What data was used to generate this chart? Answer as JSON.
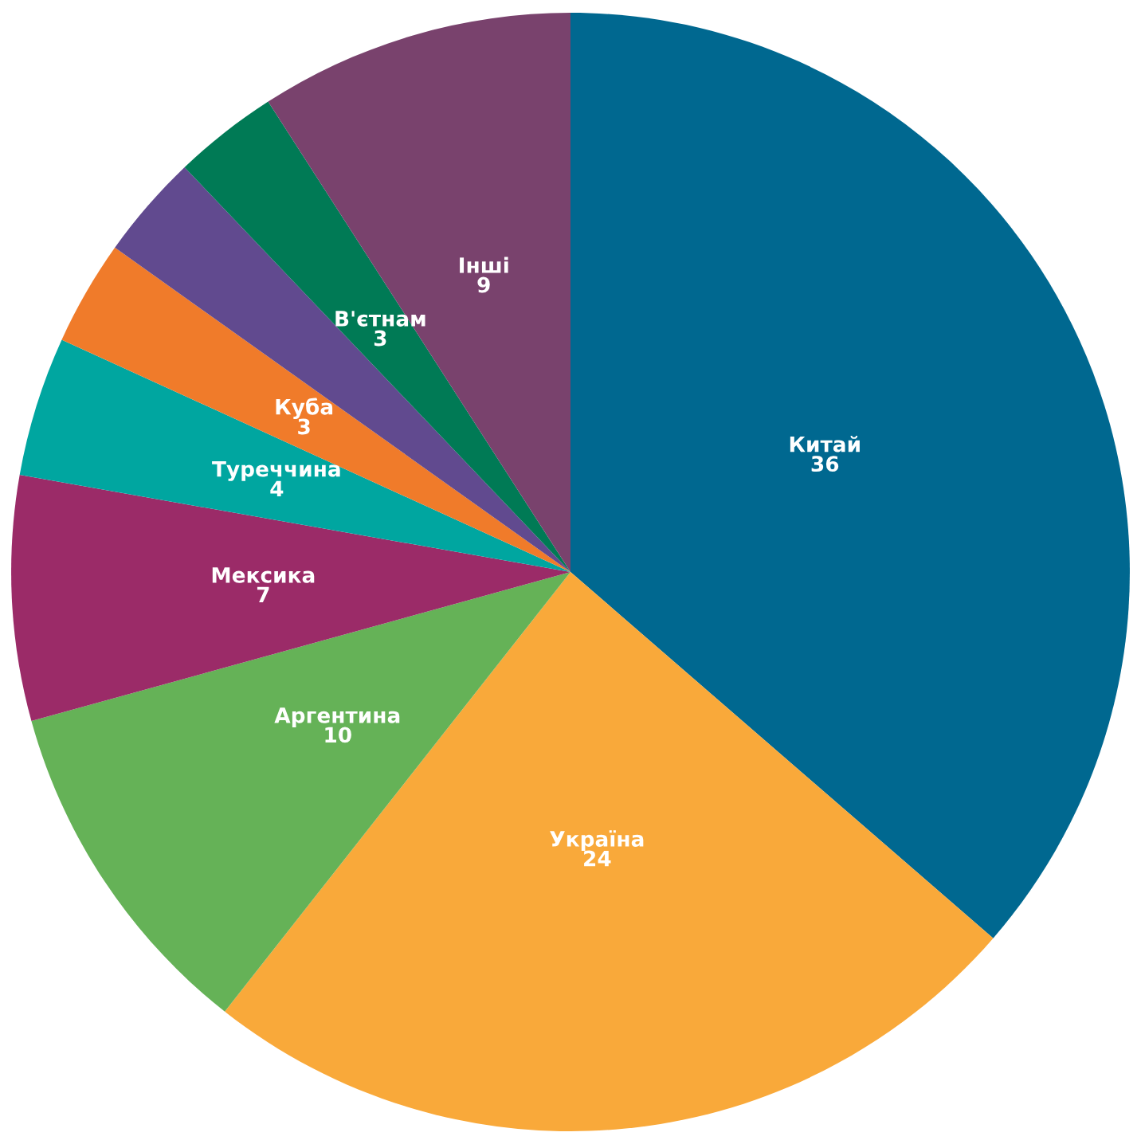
{
  "chart_data": {
    "type": "pie",
    "categories": [
      "Китай",
      "Україна",
      "Аргентина",
      "Мексика",
      "Туреччина",
      "Куба",
      null,
      "В'єтнам",
      "Інші"
    ],
    "values": [
      36,
      24,
      10,
      7,
      4,
      3,
      3,
      3,
      9
    ],
    "value_labels": [
      "36",
      "24",
      "10",
      "7",
      "4",
      "3",
      null,
      "3",
      "9"
    ],
    "colors": [
      "#006890",
      "#f9a93a",
      "#65b257",
      "#9b2b68",
      "#00a6a0",
      "#f07b2a",
      "#614a8f",
      "#007a55",
      "#79426d"
    ]
  }
}
